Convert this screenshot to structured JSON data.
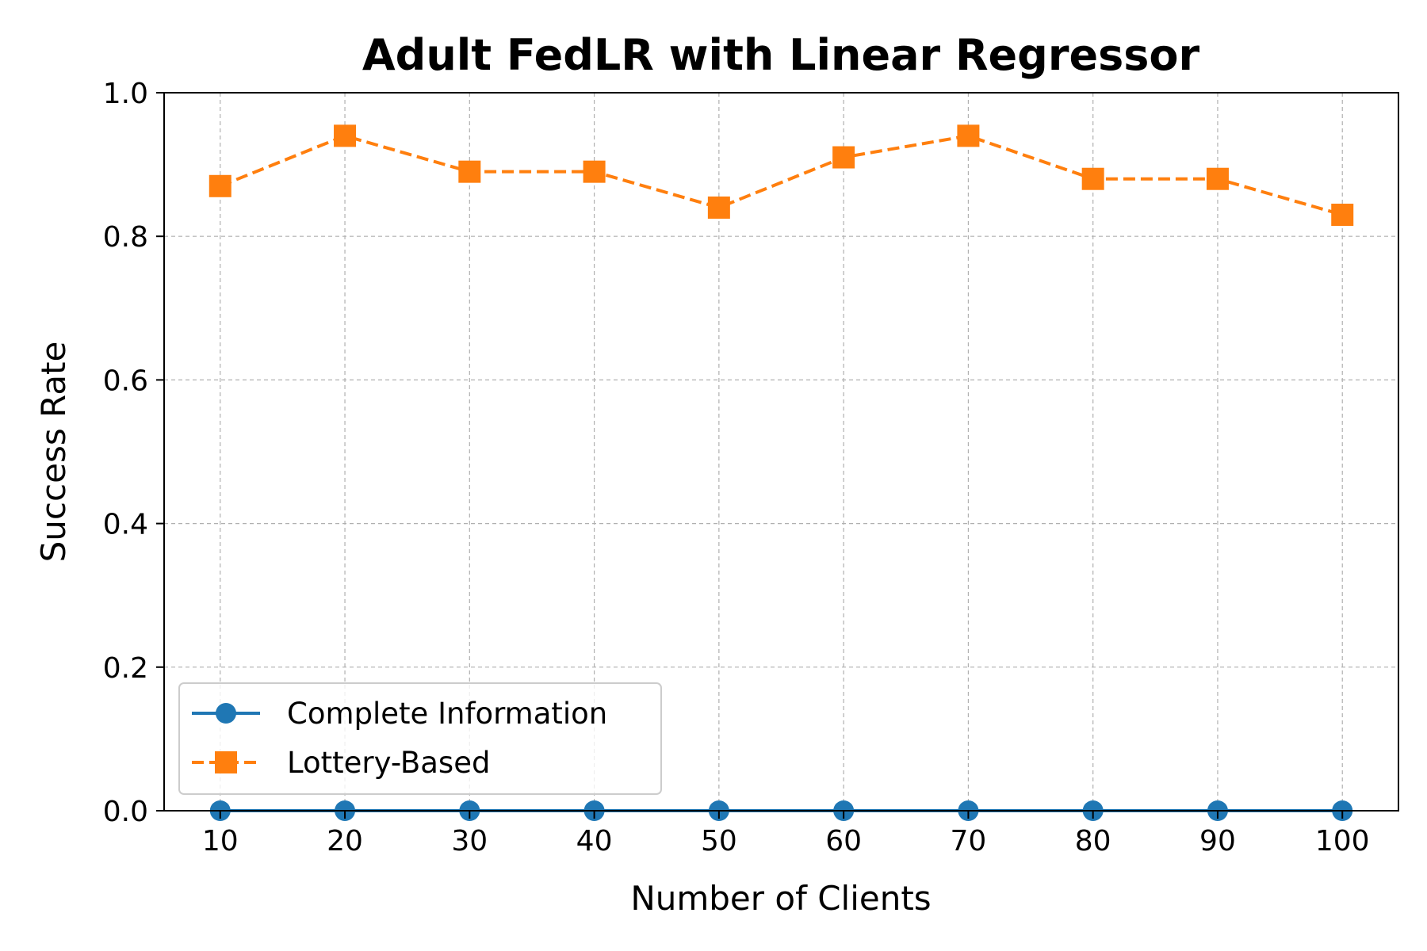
{
  "chart_data": {
    "type": "line",
    "title": "Adult FedLR with Linear Regressor",
    "xlabel": "Number of Clients",
    "ylabel": "Success Rate",
    "x": [
      10,
      20,
      30,
      40,
      50,
      60,
      70,
      80,
      90,
      100
    ],
    "x_tick_labels": [
      "10",
      "20",
      "30",
      "40",
      "50",
      "60",
      "70",
      "80",
      "90",
      "100"
    ],
    "y_tick_values": [
      0.0,
      0.2,
      0.4,
      0.6,
      0.8,
      1.0
    ],
    "y_tick_labels": [
      "0.0",
      "0.2",
      "0.4",
      "0.6",
      "0.8",
      "1.0"
    ],
    "xlim": [
      5.5,
      104.5
    ],
    "ylim": [
      0.0,
      1.0
    ],
    "grid": true,
    "legend_position": "lower-left",
    "series": [
      {
        "name": "Complete Information",
        "values": [
          0.0,
          0.0,
          0.0,
          0.0,
          0.0,
          0.0,
          0.0,
          0.0,
          0.0,
          0.0
        ],
        "color": "#1f77b4",
        "marker": "circle",
        "line_style": "solid"
      },
      {
        "name": "Lottery-Based",
        "values": [
          0.87,
          0.94,
          0.89,
          0.89,
          0.84,
          0.91,
          0.94,
          0.88,
          0.88,
          0.83
        ],
        "color": "#ff7f0e",
        "marker": "square",
        "line_style": "dashed"
      }
    ]
  }
}
